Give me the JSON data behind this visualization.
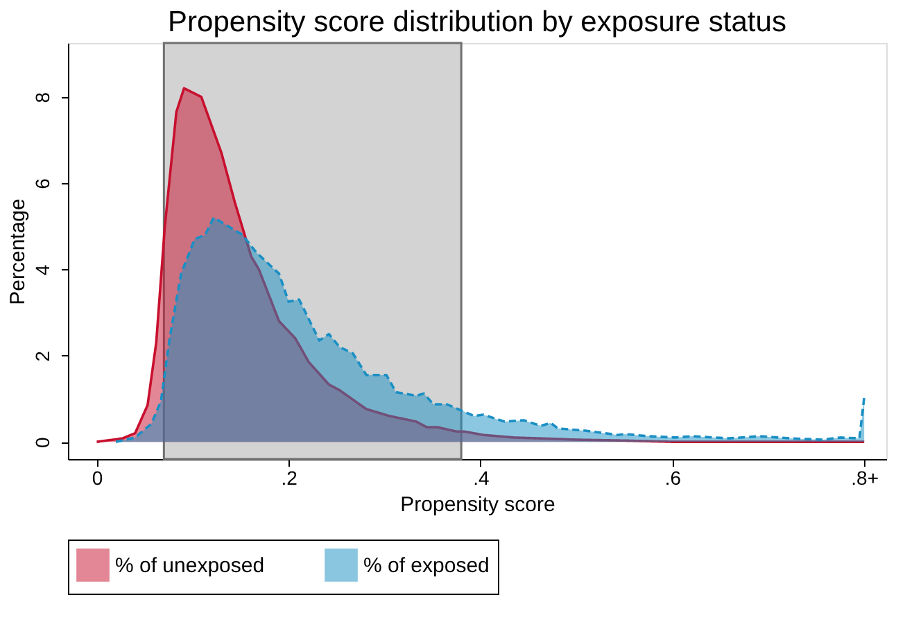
{
  "chart_data": {
    "type": "area",
    "title": "Propensity score distribution by exposure status",
    "xlabel": "Propensity score",
    "ylabel": "Percentage",
    "xlim": [
      -0.03,
      0.823
    ],
    "ylim": [
      -0.4,
      9.25
    ],
    "xticks": [
      0,
      {
        "value": 0.2,
        "label": ".2"
      },
      {
        "value": 0.4,
        "label": ".4"
      },
      {
        "value": 0.6,
        "label": ".6"
      },
      {
        "value": 0.8,
        "label": ".8+"
      }
    ],
    "yticks": [
      0,
      2,
      4,
      6,
      8
    ],
    "legend": "bottom",
    "bands": [
      {
        "axis": "x",
        "from": 0.07,
        "to": 0.38,
        "color": "#d3d3d3"
      }
    ],
    "series": [
      {
        "name": "% of unexposed",
        "color": "#c8102e",
        "line_style": "solid",
        "x": [
          0,
          0.027,
          0.04,
          0.053,
          0.062,
          0.071,
          0.083,
          0.091,
          0.109,
          0.13,
          0.144,
          0.161,
          0.169,
          0.19,
          0.207,
          0.221,
          0.242,
          0.253,
          0.281,
          0.305,
          0.333,
          0.344,
          0.355,
          0.375,
          0.383,
          0.403,
          0.435,
          0.463,
          0.5,
          0.55,
          0.6,
          0.7,
          0.8
        ],
        "values": [
          0,
          0.08,
          0.2,
          0.85,
          2.3,
          5.0,
          7.65,
          8.2,
          8.0,
          6.7,
          5.55,
          4.3,
          4.0,
          2.8,
          2.4,
          1.85,
          1.33,
          1.2,
          0.76,
          0.6,
          0.47,
          0.34,
          0.34,
          0.24,
          0.24,
          0.16,
          0.1,
          0.08,
          0.05,
          0.03,
          0,
          0,
          0
        ]
      },
      {
        "name": "% of exposed",
        "color": "#1a8fc4",
        "line_style": "dashed",
        "x": [
          0.02,
          0.04,
          0.057,
          0.067,
          0.076,
          0.088,
          0.102,
          0.113,
          0.122,
          0.137,
          0.152,
          0.166,
          0.19,
          0.2,
          0.211,
          0.232,
          0.242,
          0.253,
          0.267,
          0.281,
          0.302,
          0.312,
          0.333,
          0.341,
          0.351,
          0.365,
          0.383,
          0.393,
          0.403,
          0.425,
          0.445,
          0.463,
          0.473,
          0.481,
          0.509,
          0.543,
          0.551,
          0.575,
          0.603,
          0.621,
          0.659,
          0.691,
          0.724,
          0.757,
          0.775,
          0.795,
          0.8
        ],
        "values": [
          0,
          0.1,
          0.42,
          0.95,
          2.4,
          3.9,
          4.7,
          4.8,
          5.2,
          5.0,
          4.8,
          4.4,
          3.9,
          3.25,
          3.3,
          2.35,
          2.5,
          2.2,
          2.05,
          1.55,
          1.55,
          1.15,
          1.07,
          1.12,
          0.87,
          0.87,
          0.7,
          0.6,
          0.63,
          0.47,
          0.5,
          0.37,
          0.44,
          0.31,
          0.26,
          0.16,
          0.18,
          0.13,
          0.1,
          0.13,
          0.08,
          0.13,
          0.08,
          0.05,
          0.1,
          0.08,
          1.03
        ]
      }
    ]
  }
}
